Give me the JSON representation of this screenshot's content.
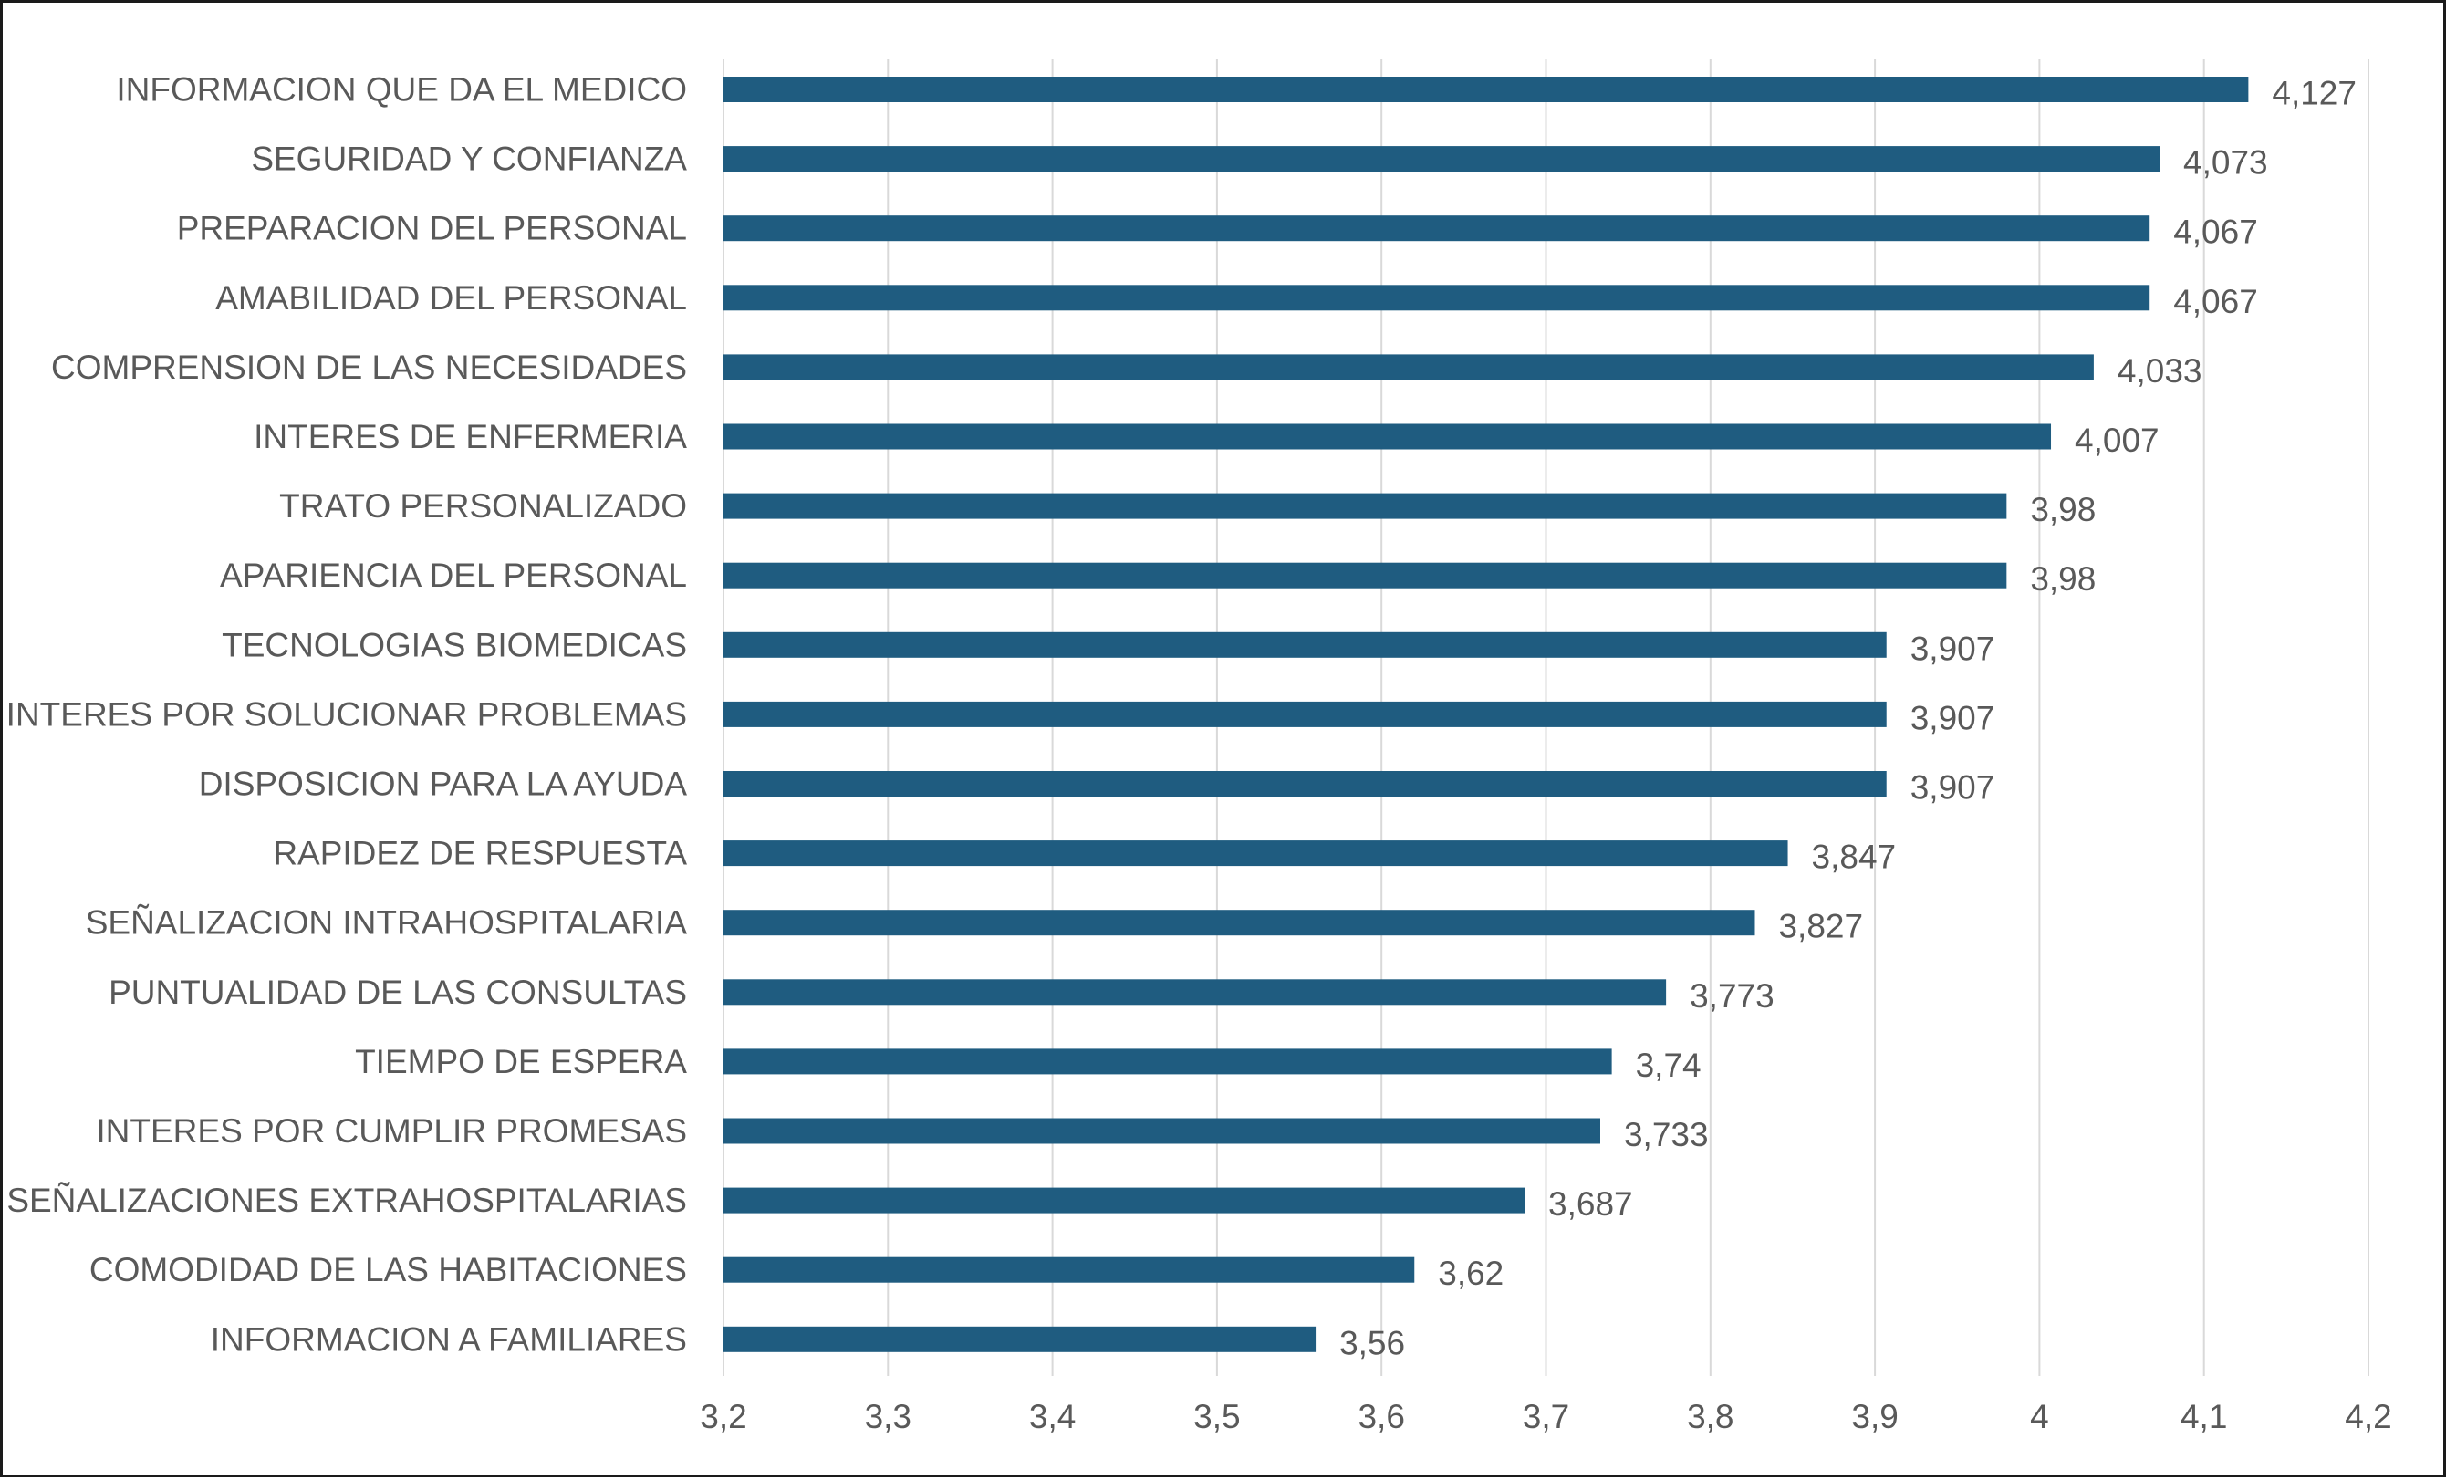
{
  "chart_data": {
    "type": "bar",
    "orientation": "horizontal",
    "title": "",
    "xlabel": "",
    "ylabel": "",
    "xlim": [
      3.2,
      4.2
    ],
    "ticks": [
      3.2,
      3.3,
      3.4,
      3.5,
      3.6,
      3.7,
      3.8,
      3.9,
      4.0,
      4.1,
      4.2
    ],
    "tick_labels": [
      "3,2",
      "3,3",
      "3,4",
      "3,5",
      "3,6",
      "3,7",
      "3,8",
      "3,9",
      "4",
      "4,1",
      "4,2"
    ],
    "grid": "vertical",
    "bar_color": "#1f5c80",
    "categories": [
      "INFORMACION QUE DA EL MEDICO",
      "SEGURIDAD Y CONFIANZA",
      "PREPARACION DEL PERSONAL",
      "AMABILIDAD DEL PERSONAL",
      "COMPRENSION DE LAS NECESIDADES",
      "INTERES DE ENFERMERIA",
      "TRATO PERSONALIZADO",
      "APARIENCIA DEL PERSONAL",
      "TECNOLOGIAS BIOMEDICAS",
      "INTERES POR SOLUCIONAR PROBLEMAS",
      "DISPOSICION PARA LA AYUDA",
      "RAPIDEZ DE RESPUESTA",
      "SEÑALIZACION INTRAHOSPITALARIA",
      "PUNTUALIDAD DE LAS CONSULTAS",
      "TIEMPO DE ESPERA",
      "INTERES POR CUMPLIR PROMESAS",
      "SEÑALIZACIONES EXTRAHOSPITALARIAS",
      "COMODIDAD DE LAS HABITACIONES",
      "INFORMACION A FAMILIARES"
    ],
    "values": [
      4.127,
      4.073,
      4.067,
      4.067,
      4.033,
      4.007,
      3.98,
      3.98,
      3.907,
      3.907,
      3.907,
      3.847,
      3.827,
      3.773,
      3.74,
      3.733,
      3.687,
      3.62,
      3.56
    ],
    "value_labels": [
      "4,127",
      "4,073",
      "4,067",
      "4,067",
      "4,033",
      "4,007",
      "3,98",
      "3,98",
      "3,907",
      "3,907",
      "3,907",
      "3,847",
      "3,827",
      "3,773",
      "3,74",
      "3,733",
      "3,687",
      "3,62",
      "3,56"
    ]
  }
}
